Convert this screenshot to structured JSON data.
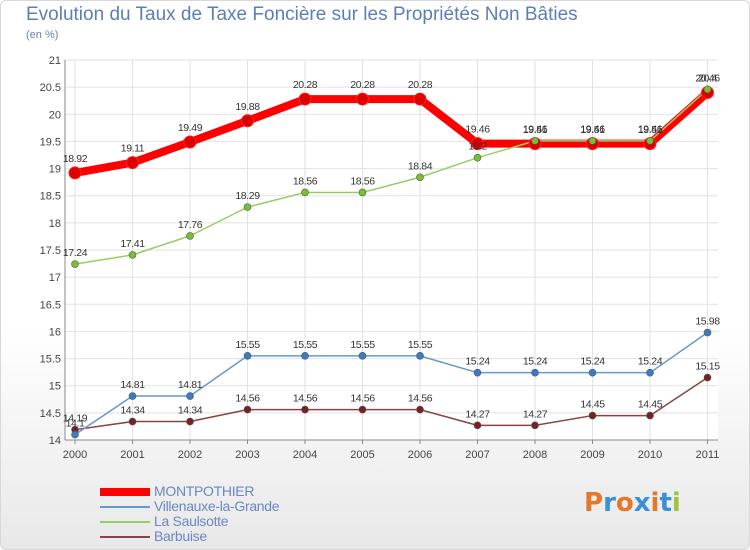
{
  "title": "Evolution du Taux de Taxe Foncière sur les Propriétés Non Bâties",
  "unit_label": "(en %)",
  "logo": {
    "text": "Proxiti",
    "letter_colors": [
      "#e5762a",
      "#3a8fd6",
      "#e5762a",
      "#3a8fd6",
      "#e5762a",
      "#3a8fd6",
      "#9bc53d"
    ]
  },
  "chart_data": {
    "type": "line",
    "x": [
      "2000",
      "2001",
      "2002",
      "2003",
      "2004",
      "2005",
      "2006",
      "2007",
      "2008",
      "2009",
      "2010",
      "2011"
    ],
    "ylim": [
      14,
      21
    ],
    "yticks": [
      "14",
      "14.5",
      "15",
      "15.5",
      "16",
      "16.5",
      "17",
      "17.5",
      "18",
      "18.5",
      "19",
      "19.5",
      "20",
      "20.5",
      "21"
    ],
    "grid": true,
    "legend_position": "bottom-left",
    "series": [
      {
        "name": "MONTPOTHIER",
        "color": "#ff0000",
        "marker_color": "#dd0000",
        "values": [
          18.92,
          19.11,
          19.49,
          19.88,
          20.28,
          20.28,
          20.28,
          19.46,
          19.46,
          19.46,
          19.46,
          20.4
        ],
        "labels": [
          "18.92",
          "19.11",
          "19.49",
          "19.88",
          "20.28",
          "20.28",
          "20.28",
          "19.46",
          "19.46",
          "19.46",
          "19.46",
          "20.4"
        ]
      },
      {
        "name": "Villenauxe-la-Grande",
        "color": "#6699cc",
        "marker_color": "#3a7cc4",
        "values": [
          14.1,
          14.81,
          14.81,
          15.55,
          15.55,
          15.55,
          15.55,
          15.24,
          15.24,
          15.24,
          15.24,
          15.98
        ],
        "labels": [
          "14.1",
          "14.81",
          "14.81",
          "15.55",
          "15.55",
          "15.55",
          "15.55",
          "15.24",
          "15.24",
          "15.24",
          "15.24",
          "15.98"
        ]
      },
      {
        "name": "La Saulsotte",
        "color": "#99cc66",
        "marker_color": "#77c030",
        "values": [
          17.24,
          17.41,
          17.76,
          18.29,
          18.56,
          18.56,
          18.84,
          19.2,
          19.51,
          19.51,
          19.51,
          20.46
        ],
        "labels": [
          "17.24",
          "17.41",
          "17.76",
          "18.29",
          "18.56",
          "18.56",
          "18.84",
          "19.2",
          "19.51",
          "19.51",
          "19.51",
          "20.46"
        ]
      },
      {
        "name": "Barbuise",
        "color": "#884444",
        "marker_color": "#772222",
        "values": [
          14.19,
          14.34,
          14.34,
          14.56,
          14.56,
          14.56,
          14.56,
          14.27,
          14.27,
          14.45,
          14.45,
          15.15
        ],
        "labels": [
          "14.19",
          "14.34",
          "14.34",
          "14.56",
          "14.56",
          "14.56",
          "14.56",
          "14.27",
          "14.27",
          "14.45",
          "14.45",
          "15.15"
        ]
      }
    ]
  }
}
